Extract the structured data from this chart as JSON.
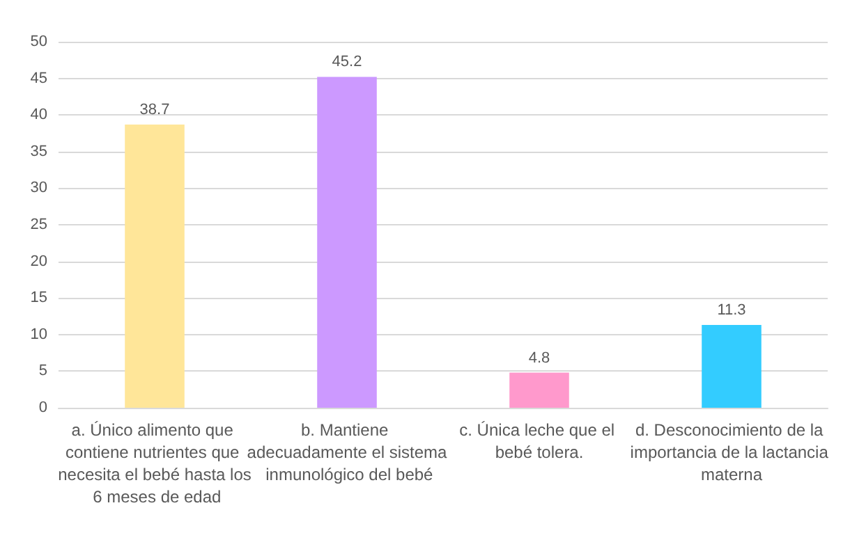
{
  "chart_data": {
    "type": "bar",
    "categories": [
      "a. Único alimento que contiene nutrientes que necesita el bebé hasta los 6 meses de edad",
      "b. Mantiene adecuadamente el sistema inmunológico del bebé",
      "c. Única leche que el bebé tolera.",
      "d. Desconocimiento de la importancia de la lactancia materna"
    ],
    "values": [
      38.7,
      45.2,
      4.8,
      11.3
    ],
    "colors": [
      "#ffe699",
      "#cc99ff",
      "#ff99cc",
      "#33ccff"
    ],
    "ylim": [
      0,
      50
    ],
    "yticks": [
      0,
      5,
      10,
      15,
      20,
      25,
      30,
      35,
      40,
      45,
      50
    ],
    "grid": "y",
    "data_labels": true
  }
}
